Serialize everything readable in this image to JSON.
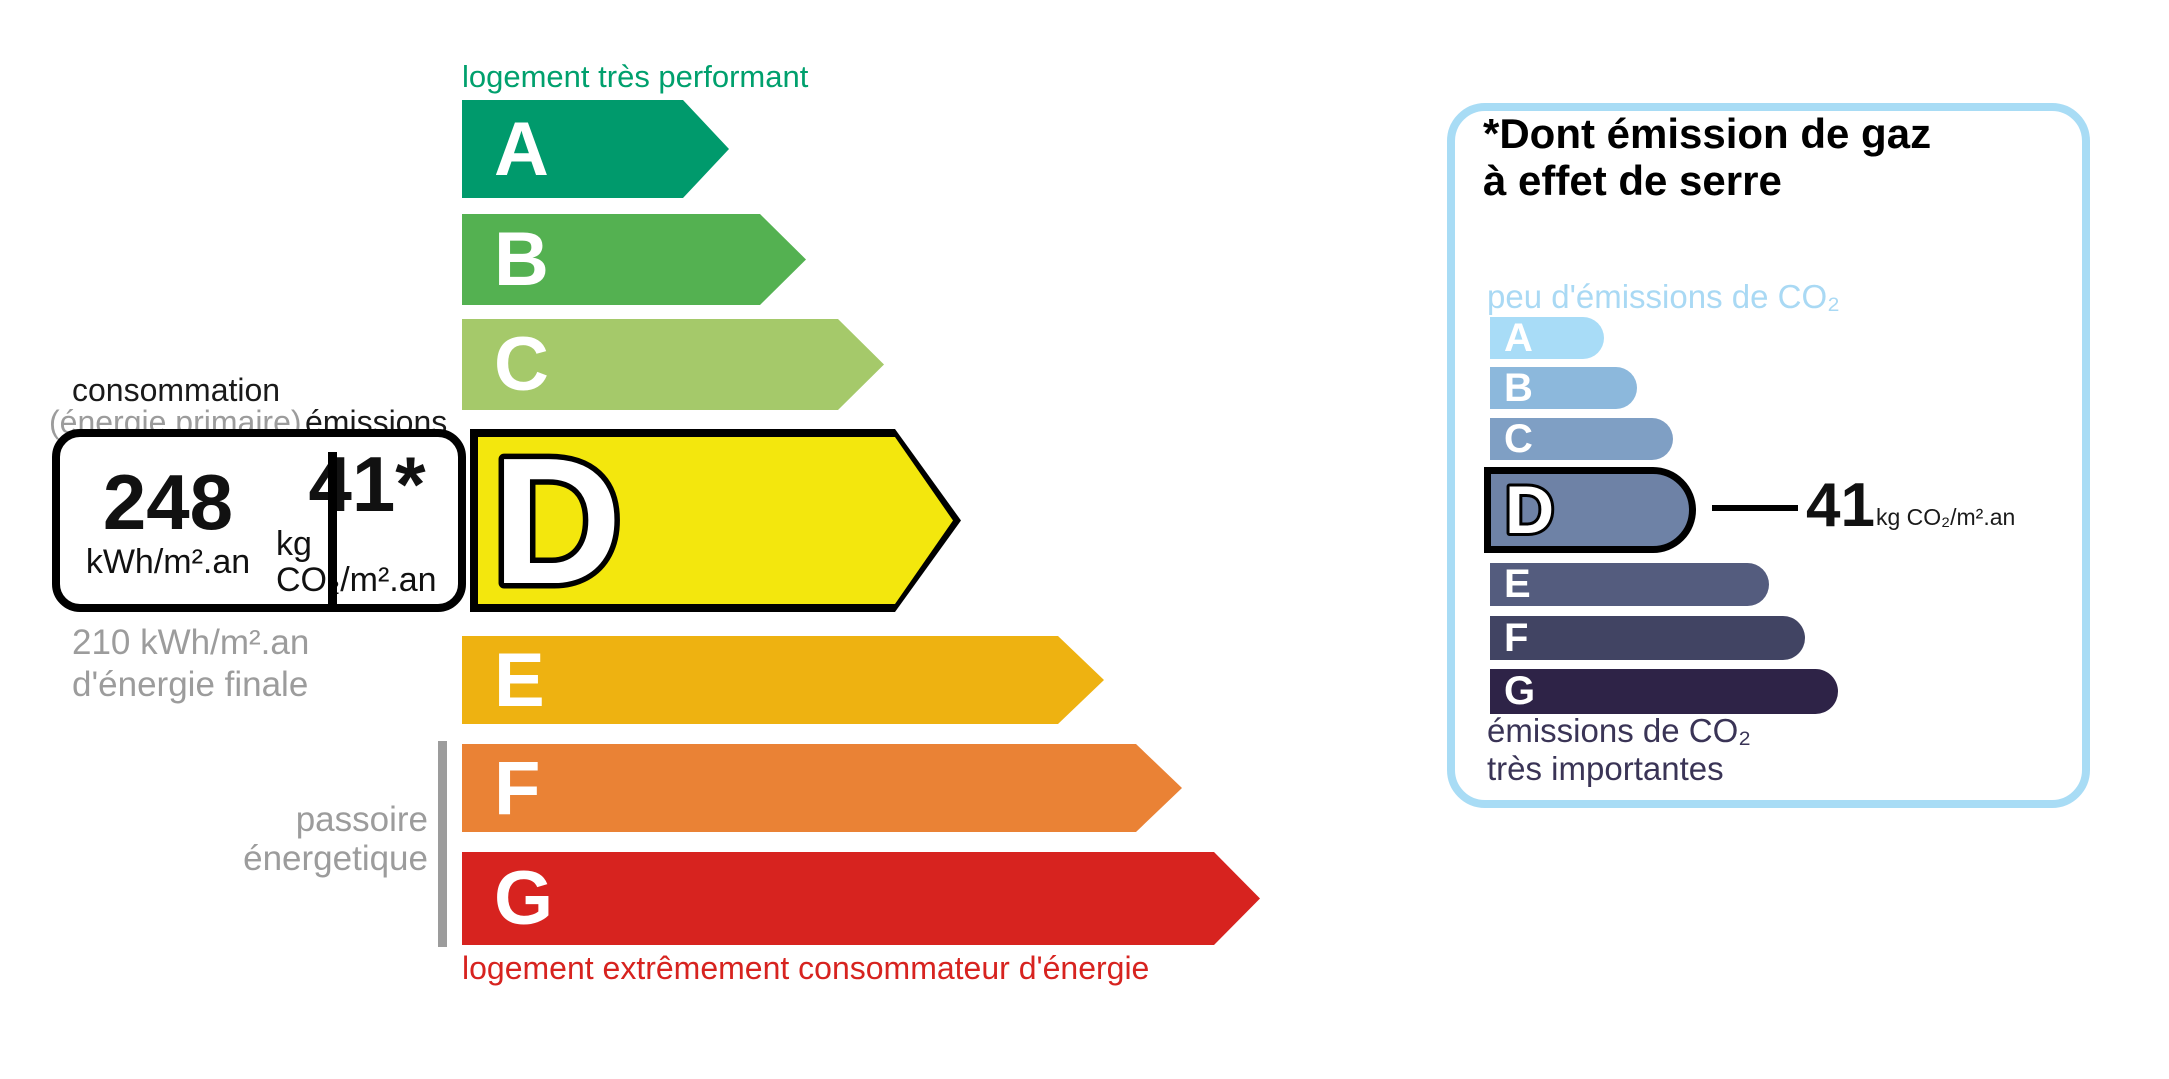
{
  "energy_scale": {
    "top_label": {
      "text": "logement très performant",
      "color": "#00a06d"
    },
    "bottom_label": {
      "text": "logement extrêmement consommateur d'énergie",
      "color": "#d7231f"
    },
    "sidebar_label": {
      "line1": "passoire",
      "line2": "énergetique",
      "color": "#9c9c9c"
    },
    "classes": [
      {
        "letter": "A",
        "color": "#009a6c"
      },
      {
        "letter": "B",
        "color": "#54b151"
      },
      {
        "letter": "C",
        "color": "#a5c96a"
      },
      {
        "letter": "D",
        "color": "#f3e70d",
        "active": true
      },
      {
        "letter": "E",
        "color": "#eeb211"
      },
      {
        "letter": "F",
        "color": "#ea8235"
      },
      {
        "letter": "G",
        "color": "#d7231f"
      }
    ],
    "rating_letter": "D"
  },
  "consumption_box": {
    "header": {
      "primary": "consommation",
      "primary_sub": "(énergie primaire)",
      "primary_sub_color": "#9c9c9c",
      "emissions": "émissions"
    },
    "energy": {
      "value": "248",
      "unit": "kWh/m².an"
    },
    "co2": {
      "value": "41*",
      "unit": "kg CO₂/m².an"
    },
    "final_energy": {
      "line1": "210 kWh/m².an",
      "line2": "d'énergie finale",
      "color": "#9c9c9c"
    }
  },
  "co2_panel": {
    "border_color": "#a8dcf5",
    "title": {
      "line1": "*Dont émission de gaz",
      "line2": "à effet de serre"
    },
    "low_label": {
      "text": "peu d'émissions de CO₂",
      "color": "#a9d9f4"
    },
    "high_label": {
      "line1": "émissions de CO₂",
      "line2": "très importantes",
      "color": "#3a3456"
    },
    "classes": [
      {
        "letter": "A",
        "color": "#a8dcf7"
      },
      {
        "letter": "B",
        "color": "#8cb8dc"
      },
      {
        "letter": "C",
        "color": "#7f9fc4"
      },
      {
        "letter": "D",
        "color": "#6e82a6",
        "active": true
      },
      {
        "letter": "E",
        "color": "#545c7e"
      },
      {
        "letter": "F",
        "color": "#414463"
      },
      {
        "letter": "G",
        "color": "#2e2347"
      }
    ],
    "callout": {
      "value": "41",
      "unit": "kg CO₂/m².an"
    }
  }
}
